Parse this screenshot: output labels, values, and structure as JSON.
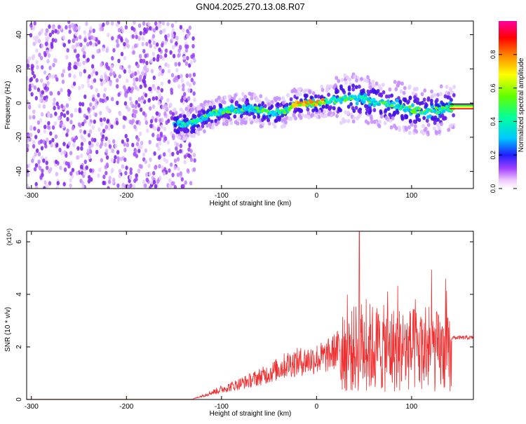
{
  "title": "GN04.2025.270.13.08.R07",
  "chart_data": [
    {
      "type": "heatmap",
      "xlabel": "Height of straight line (km)",
      "ylabel": "Frequency (Hz)",
      "xlim": [
        -305,
        165
      ],
      "ylim": [
        -50,
        48
      ],
      "x_ticks": [
        -300,
        -200,
        -100,
        0,
        100
      ],
      "y_ticks": [
        -40,
        -20,
        0,
        20,
        40
      ],
      "grid": false,
      "colorbar": {
        "label": "Normalized spectral amplitude",
        "range": [
          0,
          1
        ],
        "ticks": [
          "0.0",
          "0.2",
          "0.4",
          "0.6",
          "0.8"
        ]
      },
      "ridge": [
        {
          "x": -145,
          "y": -12
        },
        {
          "x": -130,
          "y": -12
        },
        {
          "x": -110,
          "y": -6
        },
        {
          "x": -90,
          "y": -4
        },
        {
          "x": -70,
          "y": -3
        },
        {
          "x": -50,
          "y": -6
        },
        {
          "x": -35,
          "y": -5
        },
        {
          "x": -20,
          "y": 0
        },
        {
          "x": 0,
          "y": 0
        },
        {
          "x": 20,
          "y": 2
        },
        {
          "x": 40,
          "y": 3
        },
        {
          "x": 60,
          "y": 1
        },
        {
          "x": 80,
          "y": -1
        },
        {
          "x": 100,
          "y": -4
        },
        {
          "x": 120,
          "y": -5
        },
        {
          "x": 140,
          "y": -3
        },
        {
          "x": 165,
          "y": -2
        }
      ]
    },
    {
      "type": "line",
      "xlabel": "Height of straight line (km)",
      "ylabel": "SNR (10 * v/v)",
      "y_multiplier": "(x10⁴)",
      "xlim": [
        -305,
        165
      ],
      "ylim": [
        0,
        6.4
      ],
      "x_ticks": [
        -300,
        -200,
        -100,
        0,
        100
      ],
      "y_ticks": [
        0,
        2,
        4,
        6
      ],
      "series": [
        {
          "color": "#f03030",
          "envelope": [
            {
              "x": -305,
              "y": 0.0
            },
            {
              "x": -130,
              "y": 0.02
            },
            {
              "x": -110,
              "y": 0.3
            },
            {
              "x": -90,
              "y": 0.55
            },
            {
              "x": -70,
              "y": 0.8
            },
            {
              "x": -50,
              "y": 1.1
            },
            {
              "x": -30,
              "y": 1.5
            },
            {
              "x": -10,
              "y": 1.65
            },
            {
              "x": 10,
              "y": 1.8
            },
            {
              "x": 25,
              "y": 2.2
            },
            {
              "x": 30,
              "y": 3.2
            },
            {
              "x": 45,
              "y": 3.8
            },
            {
              "x": 70,
              "y": 3.6
            },
            {
              "x": 100,
              "y": 3.5
            },
            {
              "x": 125,
              "y": 3.4
            },
            {
              "x": 140,
              "y": 3.2
            },
            {
              "x": 142,
              "y": 2.4
            },
            {
              "x": 165,
              "y": 2.4
            }
          ],
          "peak": {
            "x": 45,
            "y": 6.4
          }
        }
      ]
    }
  ]
}
